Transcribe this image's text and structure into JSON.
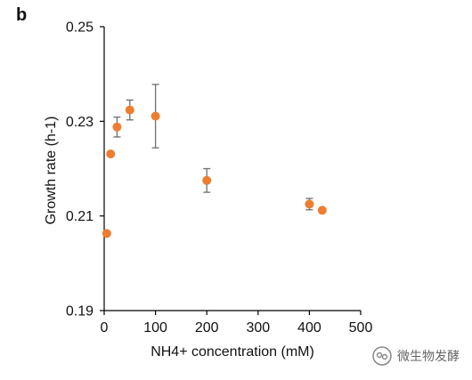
{
  "panel_label": "b",
  "watermark": {
    "text": "微生物发酵",
    "icon": "wechat-icon"
  },
  "colors": {
    "marker": "#ED7D31",
    "errorbar": "#6e6e6e",
    "axis": "#000000",
    "text": "#111111"
  },
  "chart_data": {
    "type": "scatter",
    "title": "",
    "xlabel": "NH4+ concentration (mM)",
    "ylabel": "Growth rate (h-1)",
    "xlim": [
      0,
      500
    ],
    "ylim": [
      0.19,
      0.25
    ],
    "xticks": [
      0,
      100,
      200,
      300,
      400,
      500
    ],
    "yticks": [
      0.19,
      0.21,
      0.23,
      0.25
    ],
    "ytick_labels": [
      "0.19",
      "0.21",
      "0.23",
      "0.25"
    ],
    "grid": false,
    "legend": "none",
    "series": [
      {
        "points": [
          {
            "x": 5,
            "y": 0.2063,
            "err": 0
          },
          {
            "x": 12.5,
            "y": 0.2231,
            "err": 0
          },
          {
            "x": 25,
            "y": 0.2288,
            "err": 0.0021
          },
          {
            "x": 50,
            "y": 0.2324,
            "err": 0.0021
          },
          {
            "x": 100,
            "y": 0.2311,
            "err": 0.0067
          },
          {
            "x": 200,
            "y": 0.2175,
            "err": 0.0025
          },
          {
            "x": 400,
            "y": 0.2125,
            "err": 0.0012
          },
          {
            "x": 425,
            "y": 0.2112,
            "err": 0
          }
        ]
      }
    ]
  }
}
